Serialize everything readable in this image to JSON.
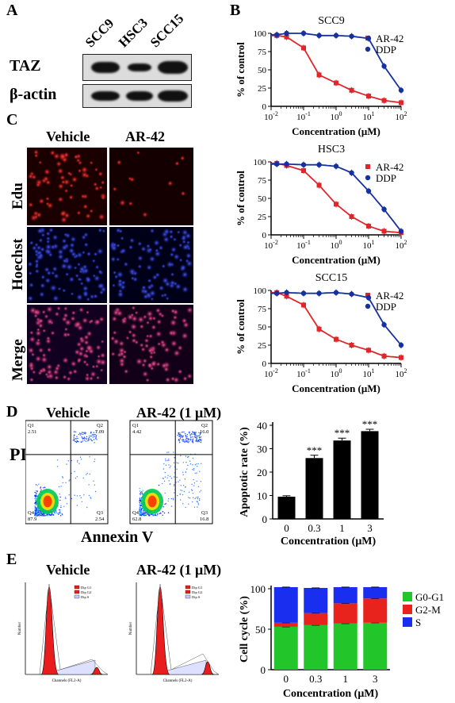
{
  "panels": {
    "A": "A",
    "B": "B",
    "C": "C",
    "D": "D",
    "E": "E"
  },
  "western_blot": {
    "columns": [
      "SCC9",
      "HSC3",
      "SCC15"
    ],
    "rows": [
      "TAZ",
      "β-actin"
    ]
  },
  "microscopy": {
    "columns": [
      "Vehicle",
      "AR-42"
    ],
    "rows": [
      "Edu",
      "Hoechst",
      "Merge"
    ]
  },
  "flow": {
    "headers": [
      "Vehicle",
      "AR-42 (1 μM)"
    ],
    "y_label": "PI",
    "x_label": "Annexin V",
    "vehicle": {
      "Q1": "Q1",
      "Q2": "Q2",
      "Q3": "Q3",
      "Q4": "Q4",
      "v1": "2.51",
      "v2": "7.09",
      "v3": "2.54",
      "v4": "87.9"
    },
    "ar42": {
      "Q1": "Q1",
      "Q2": "Q2",
      "Q3": "Q3",
      "Q4": "Q4",
      "v1": "4.42",
      "v2": "16.0",
      "v3": "16.8",
      "v4": "62.8"
    }
  },
  "cellcycle": {
    "headers": [
      "Vehicle",
      "AR-42 (1 μM)"
    ],
    "legend_small": [
      "Dip G1",
      "Dip G2",
      "Dip S"
    ],
    "x_label_small": "Channels (FL2-A)",
    "y_label_small": "Number"
  },
  "colors": {
    "ar42": "#e0262b",
    "ddp": "#1530a0",
    "g0g1": "#22c52a",
    "g2m": "#e8231e",
    "s": "#1a2ef0"
  },
  "chart_data": [
    {
      "type": "line",
      "title": "SCC9",
      "xlabel": "Concentration (μM)",
      "ylabel": "% of control",
      "xscale": "log",
      "xlim": [
        0.01,
        100
      ],
      "ylim": [
        0,
        100
      ],
      "xticks": [
        "10-2",
        "10-1",
        "100",
        "101",
        "102"
      ],
      "yticks": [
        "0",
        "25",
        "50",
        "75",
        "100"
      ],
      "legend_loc": "top-right",
      "series": [
        {
          "name": "AR-42",
          "x": [
            0.015,
            0.03,
            0.1,
            0.3,
            1,
            3,
            10,
            30,
            100
          ],
          "y": [
            97,
            95,
            80,
            43,
            32,
            22,
            14,
            8,
            5
          ],
          "color": "#e0262b"
        },
        {
          "name": "DDP",
          "x": [
            0.015,
            0.03,
            0.1,
            0.3,
            1,
            3,
            10,
            30,
            100
          ],
          "y": [
            98,
            100,
            100,
            97,
            97,
            96,
            93,
            55,
            22
          ],
          "color": "#1530a0"
        }
      ]
    },
    {
      "type": "line",
      "title": "HSC3",
      "xlabel": "Concentration (μM)",
      "ylabel": "% of control",
      "xscale": "log",
      "xlim": [
        0.01,
        100
      ],
      "ylim": [
        0,
        100
      ],
      "xticks": [
        "10-2",
        "10-1",
        "100",
        "101",
        "102"
      ],
      "yticks": [
        "0",
        "25",
        "50",
        "75",
        "100"
      ],
      "legend_loc": "top-right",
      "series": [
        {
          "name": "AR-42",
          "x": [
            0.015,
            0.03,
            0.1,
            0.3,
            1,
            3,
            10,
            30,
            100
          ],
          "y": [
            98,
            95,
            88,
            68,
            42,
            25,
            12,
            5,
            3
          ],
          "color": "#e0262b"
        },
        {
          "name": "DDP",
          "x": [
            0.015,
            0.03,
            0.1,
            0.3,
            1,
            3,
            10,
            30,
            100
          ],
          "y": [
            97,
            97,
            96,
            96,
            94,
            85,
            60,
            35,
            5
          ],
          "color": "#1530a0"
        }
      ]
    },
    {
      "type": "line",
      "title": "SCC15",
      "xlabel": "Concentration (μM)",
      "ylabel": "% of control",
      "xscale": "log",
      "xlim": [
        0.01,
        100
      ],
      "ylim": [
        0,
        100
      ],
      "xticks": [
        "10-2",
        "10-1",
        "100",
        "101",
        "102"
      ],
      "yticks": [
        "0",
        "25",
        "50",
        "75",
        "100"
      ],
      "legend_loc": "top-right",
      "series": [
        {
          "name": "AR-42",
          "x": [
            0.015,
            0.03,
            0.1,
            0.3,
            1,
            3,
            10,
            30,
            100
          ],
          "y": [
            97,
            92,
            80,
            47,
            33,
            25,
            18,
            10,
            8
          ],
          "color": "#e0262b"
        },
        {
          "name": "DDP",
          "x": [
            0.015,
            0.03,
            0.1,
            0.3,
            1,
            3,
            10,
            30,
            100
          ],
          "y": [
            96,
            97,
            96,
            96,
            97,
            95,
            90,
            53,
            25
          ],
          "color": "#1530a0"
        }
      ]
    },
    {
      "type": "bar",
      "xlabel": "Concentration (μM)",
      "ylabel": "Apoptotic rate (%)",
      "categories": [
        "0",
        "0.3",
        "1",
        "3"
      ],
      "values": [
        9.5,
        26,
        33.5,
        37.5
      ],
      "errors": [
        0.4,
        1.2,
        1.0,
        0.8
      ],
      "annotations": [
        "",
        "***",
        "***",
        "***"
      ],
      "ylim": [
        0,
        40
      ],
      "yticks": [
        "0",
        "10",
        "20",
        "30",
        "40"
      ],
      "color": "#000000"
    },
    {
      "type": "bar",
      "stacked": true,
      "xlabel": "Concentration (μM)",
      "ylabel": "Cell cycle (%)",
      "categories": [
        "0",
        "0.3",
        "1",
        "3"
      ],
      "ylim": [
        0,
        100
      ],
      "yticks": [
        "0",
        "50",
        "100"
      ],
      "legend_loc": "right",
      "series": [
        {
          "name": "G0-G1",
          "values": [
            53,
            55,
            57,
            58
          ],
          "color": "#22c52a"
        },
        {
          "name": "G2-M",
          "values": [
            5,
            15,
            25,
            30
          ],
          "color": "#e8231e"
        },
        {
          "name": "S",
          "values": [
            44,
            31,
            20,
            14
          ],
          "color": "#1a2ef0"
        }
      ]
    }
  ]
}
